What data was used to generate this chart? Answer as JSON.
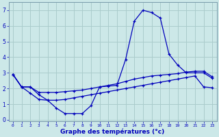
{
  "title": "Graphe des températures (°c)",
  "background_color": "#cce8e8",
  "grid_color": "#aacccc",
  "line_color": "#0000bb",
  "ylim": [
    -0.1,
    7.5
  ],
  "xlim": [
    -0.5,
    23.5
  ],
  "yticks": [
    0,
    1,
    2,
    3,
    4,
    5,
    6,
    7
  ],
  "xticks": [
    0,
    1,
    2,
    3,
    4,
    5,
    6,
    7,
    8,
    9,
    10,
    11,
    12,
    13,
    14,
    15,
    16,
    17,
    18,
    19,
    20,
    21,
    22,
    23
  ],
  "line1_x": [
    0,
    1,
    2,
    3,
    4,
    5,
    6,
    7,
    8,
    9,
    10,
    11,
    12,
    13,
    14,
    15,
    16,
    17,
    18,
    19,
    20,
    21,
    22,
    23
  ],
  "line1_y": [
    2.9,
    2.1,
    2.1,
    1.6,
    1.25,
    0.75,
    0.4,
    0.4,
    0.4,
    0.9,
    2.1,
    2.15,
    2.2,
    3.85,
    6.3,
    7.0,
    6.85,
    6.5,
    4.2,
    3.5,
    3.0,
    3.0,
    3.0,
    2.65
  ],
  "line2_x": [
    0,
    1,
    2,
    3,
    4,
    5,
    6,
    7,
    8,
    9,
    10,
    11,
    12,
    13,
    14,
    15,
    16,
    17,
    18,
    19,
    20,
    21,
    22,
    23
  ],
  "line2_y": [
    2.9,
    2.1,
    2.1,
    1.75,
    1.75,
    1.75,
    1.8,
    1.85,
    1.9,
    2.0,
    2.1,
    2.2,
    2.3,
    2.45,
    2.6,
    2.7,
    2.8,
    2.85,
    2.9,
    2.95,
    3.05,
    3.1,
    3.1,
    2.75
  ],
  "line3_x": [
    0,
    1,
    2,
    3,
    4,
    5,
    6,
    7,
    8,
    9,
    10,
    11,
    12,
    13,
    14,
    15,
    16,
    17,
    18,
    19,
    20,
    21,
    22,
    23
  ],
  "line3_y": [
    2.9,
    2.1,
    1.7,
    1.3,
    1.25,
    1.25,
    1.3,
    1.4,
    1.5,
    1.6,
    1.7,
    1.8,
    1.9,
    2.0,
    2.1,
    2.2,
    2.3,
    2.4,
    2.5,
    2.6,
    2.7,
    2.8,
    2.1,
    2.05
  ]
}
